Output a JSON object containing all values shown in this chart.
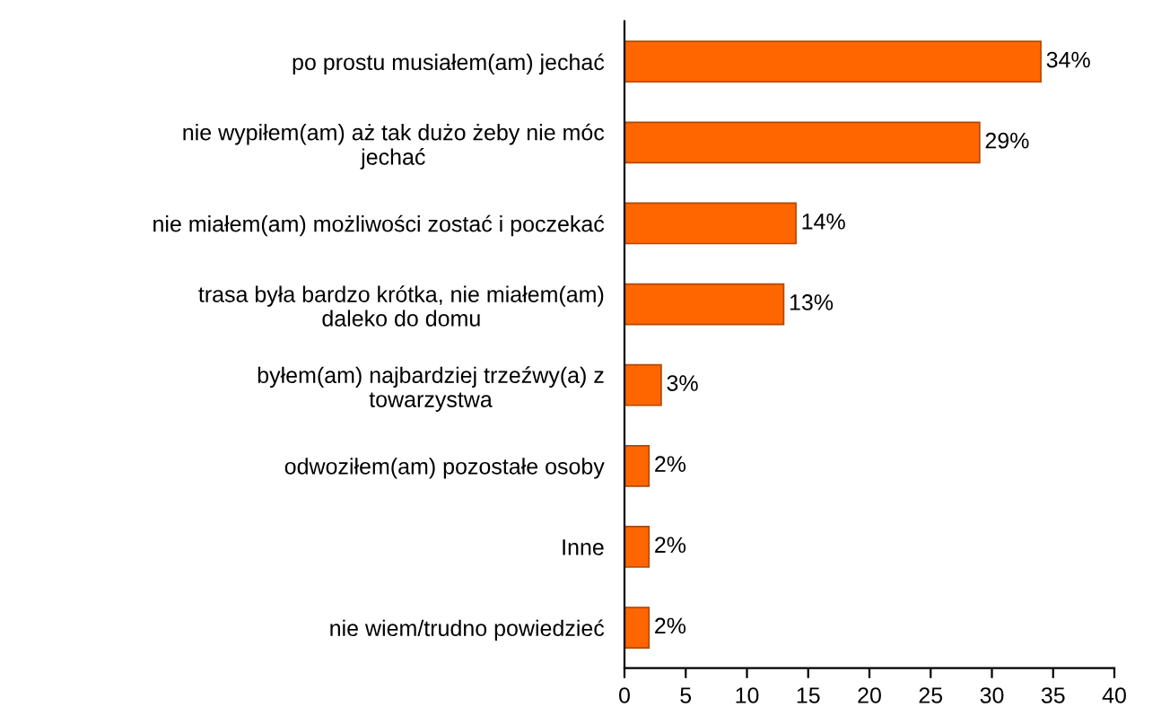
{
  "chart_data": {
    "type": "bar",
    "orientation": "horizontal",
    "categories": [
      "po prostu musiałem(am) jechać",
      "nie wypiłem(am) aż tak dużo żeby nie móc\njechać",
      "nie miałem(am) możliwości zostać i poczekać",
      "trasa była bardzo krótka, nie miałem(am)\ndaleko do domu",
      "byłem(am) najbardziej trzeźwy(a) z\ntowarzystwa",
      "odwoziłem(am) pozostałe osoby",
      "Inne",
      "nie wiem/trudno powiedzieć"
    ],
    "values": [
      34,
      29,
      14,
      13,
      3,
      2,
      2,
      2
    ],
    "value_labels": [
      "34%",
      "29%",
      "14%",
      "13%",
      "3%",
      "2%",
      "2%",
      "2%"
    ],
    "color": "#ff6600",
    "xlim": [
      0,
      40
    ],
    "xticks": [
      0,
      5,
      10,
      15,
      20,
      25,
      30,
      35,
      40
    ],
    "grid": false,
    "legend": false
  }
}
